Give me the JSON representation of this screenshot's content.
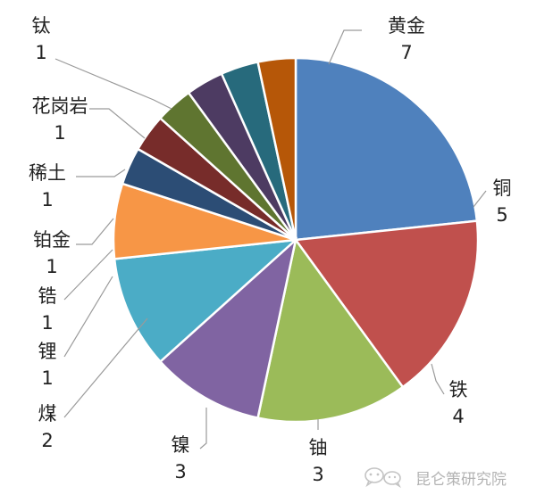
{
  "chart_data": {
    "type": "pie",
    "start_angle_deg": 0,
    "direction": "clockwise",
    "slices": [
      {
        "label": "黄金",
        "value": 7,
        "value_text": "7",
        "color": "#4F81BD"
      },
      {
        "label": "铜",
        "value": 5,
        "value_text": "5",
        "color": "#C0504D"
      },
      {
        "label": "铁",
        "value": 4,
        "value_text": "4",
        "color": "#9BBB59"
      },
      {
        "label": "铀",
        "value": 3,
        "value_text": "3",
        "color": "#8064A2"
      },
      {
        "label": "镍",
        "value": 3,
        "value_text": "3",
        "color": "#4BACC6"
      },
      {
        "label": "煤",
        "value": 2,
        "value_text": "2",
        "color": "#F79646"
      },
      {
        "label": "锂",
        "value": 1,
        "value_text": "1",
        "color": "#2C4D75"
      },
      {
        "label": "锆",
        "value": 1,
        "value_text": "1",
        "color": "#772C2A"
      },
      {
        "label": "铂金",
        "value": 1,
        "value_text": "1",
        "color": "#5F7530"
      },
      {
        "label": "稀土",
        "value": 1,
        "value_text": "1",
        "color": "#4D3B62"
      },
      {
        "label": "花岗岩",
        "value": 1,
        "value_text": "1",
        "color": "#276A7C"
      },
      {
        "label": "钛",
        "value": 1,
        "value_text": "1",
        "color": "#B65708"
      }
    ]
  },
  "watermark": {
    "text": "昆仑策研究院",
    "icon": "wechat-icon"
  }
}
